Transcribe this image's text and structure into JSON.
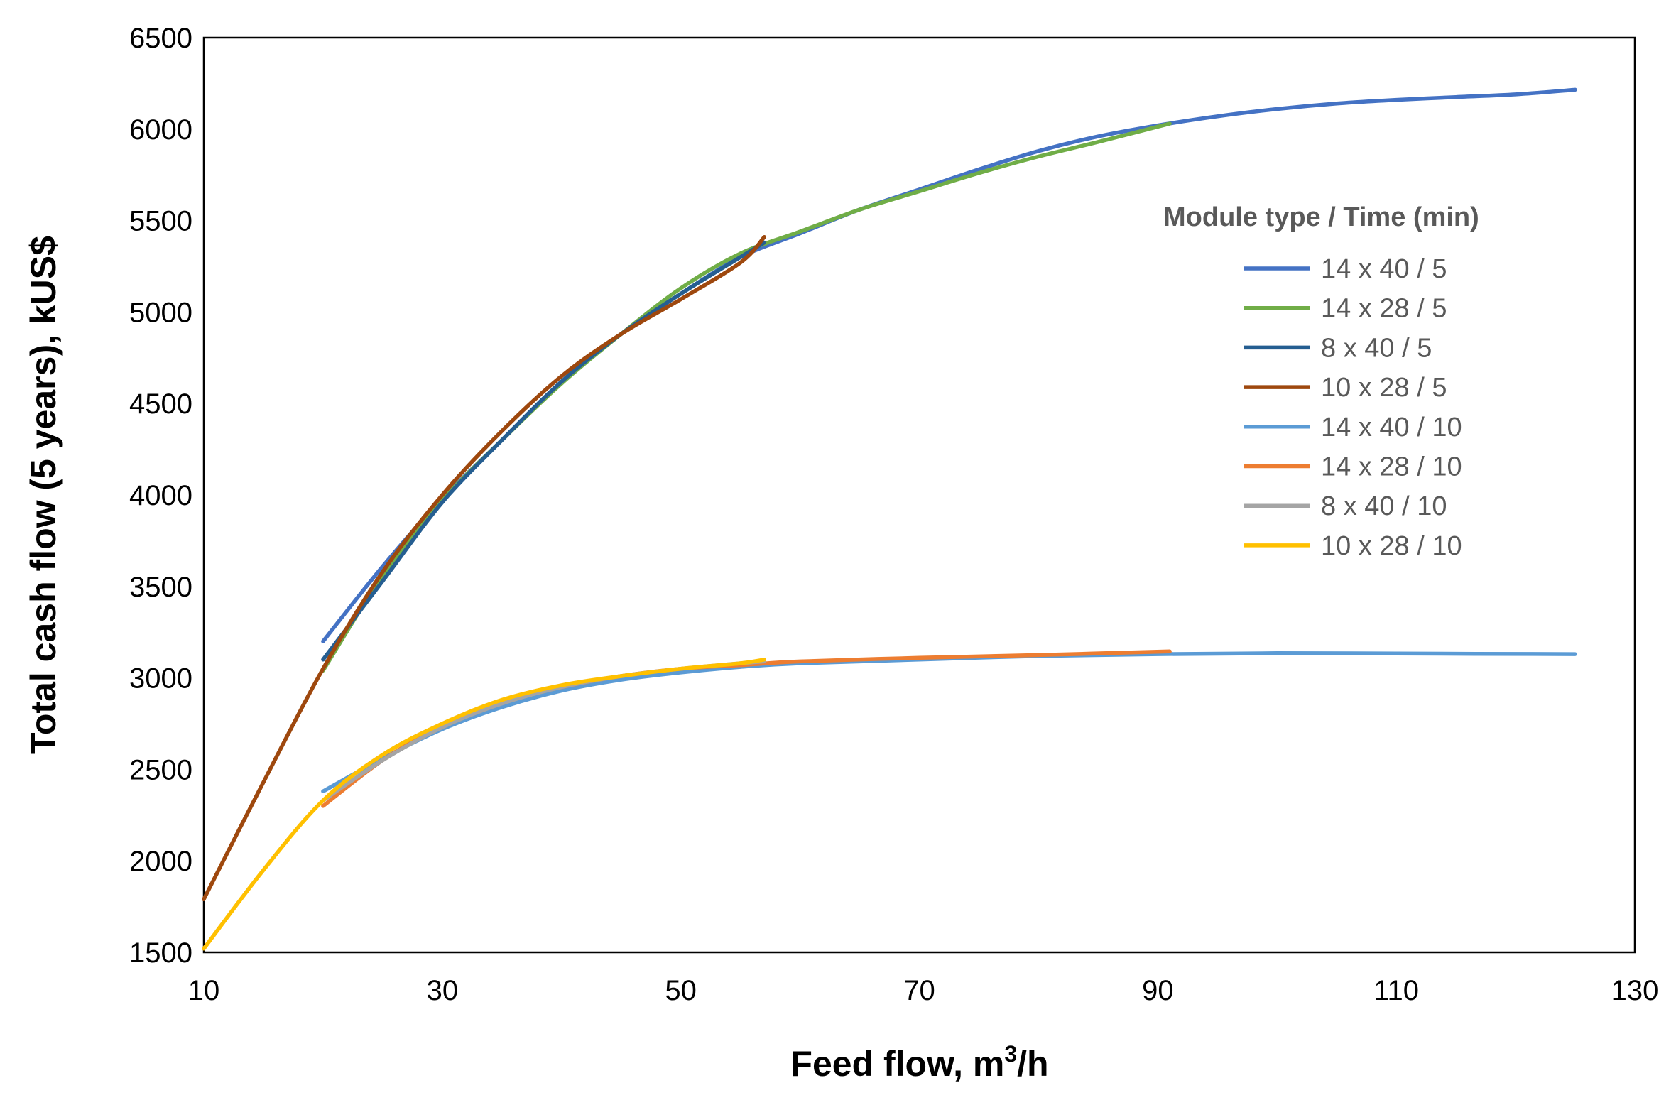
{
  "chart_data": {
    "type": "line",
    "title": "",
    "xlabel": "Feed flow, m",
    "xlabel_sup": "3",
    "xlabel_suffix": "/h",
    "ylabel": "Total cash flow (5 years), kUS$",
    "xlim": [
      10,
      130
    ],
    "ylim": [
      1500,
      6500
    ],
    "xticks": [
      10,
      30,
      50,
      70,
      90,
      110,
      130
    ],
    "yticks": [
      1500,
      2000,
      2500,
      3000,
      3500,
      4000,
      4500,
      5000,
      5500,
      6000,
      6500
    ],
    "legend_title": "Module type / Time (min)",
    "legend_position": "right",
    "series": [
      {
        "name": "14 x 40 / 5",
        "color": "#4472C4",
        "x": [
          20,
          25,
          30,
          35,
          40,
          45,
          50,
          55,
          60,
          65,
          70,
          75,
          80,
          85,
          90,
          95,
          100,
          105,
          110,
          115,
          120,
          125
        ],
        "y": [
          3200,
          3610,
          3980,
          4300,
          4620,
          4880,
          5100,
          5300,
          5430,
          5560,
          5670,
          5780,
          5880,
          5960,
          6020,
          6070,
          6110,
          6140,
          6160,
          6175,
          6190,
          6215
        ]
      },
      {
        "name": "14 x 28 / 5",
        "color": "#70AD47",
        "x": [
          20,
          25,
          30,
          35,
          40,
          45,
          50,
          55,
          60,
          65,
          70,
          75,
          80,
          85,
          91
        ],
        "y": [
          3040,
          3560,
          3970,
          4300,
          4610,
          4880,
          5130,
          5320,
          5440,
          5560,
          5660,
          5760,
          5850,
          5930,
          6030
        ]
      },
      {
        "name": "8 x 40 / 5",
        "color": "#255E91",
        "x": [
          20,
          25,
          30,
          35,
          40,
          45,
          50,
          55,
          57
        ],
        "y": [
          3100,
          3530,
          3960,
          4300,
          4620,
          4880,
          5100,
          5300,
          5380
        ]
      },
      {
        "name": "10 x 28 / 5",
        "color": "#9E480E",
        "x": [
          10,
          15,
          20,
          25,
          30,
          35,
          40,
          45,
          50,
          55,
          57
        ],
        "y": [
          1790,
          2430,
          3050,
          3580,
          4000,
          4350,
          4650,
          4880,
          5070,
          5270,
          5410
        ]
      },
      {
        "name": "14 x 40 / 10",
        "color": "#5B9BD5",
        "x": [
          20,
          25,
          30,
          35,
          40,
          45,
          50,
          55,
          60,
          70,
          80,
          90,
          100,
          110,
          125
        ],
        "y": [
          2380,
          2560,
          2720,
          2840,
          2930,
          2990,
          3030,
          3060,
          3080,
          3100,
          3120,
          3130,
          3135,
          3133,
          3130
        ]
      },
      {
        "name": "14 x 28 / 10",
        "color": "#ED7D31",
        "x": [
          20,
          25,
          30,
          35,
          40,
          45,
          50,
          55,
          60,
          70,
          80,
          91
        ],
        "y": [
          2300,
          2550,
          2740,
          2870,
          2950,
          3010,
          3050,
          3070,
          3090,
          3110,
          3125,
          3145
        ]
      },
      {
        "name": "8 x 40 / 10",
        "color": "#A5A5A5",
        "x": [
          20,
          25,
          30,
          35,
          40,
          45,
          50,
          55,
          57
        ],
        "y": [
          2330,
          2550,
          2730,
          2860,
          2950,
          3010,
          3050,
          3080,
          3090
        ]
      },
      {
        "name": "10 x 28 / 10",
        "color": "#FFC000",
        "x": [
          10,
          15,
          20,
          25,
          30,
          35,
          40,
          45,
          50,
          55,
          57
        ],
        "y": [
          1520,
          1950,
          2330,
          2580,
          2750,
          2880,
          2960,
          3010,
          3050,
          3080,
          3100
        ]
      }
    ]
  }
}
